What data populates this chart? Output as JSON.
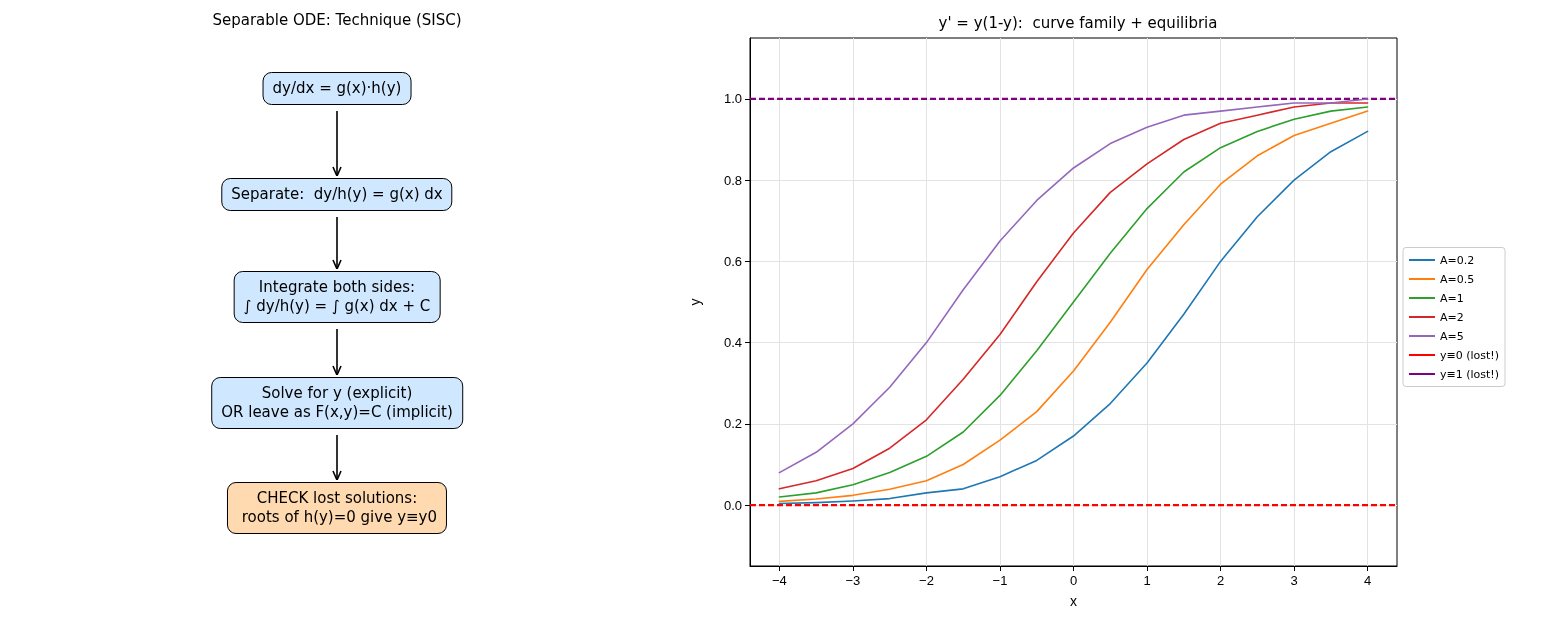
{
  "chart_data": [
    {
      "type": "other",
      "title": "Separable ODE: Technique (SISC)",
      "annotations": [
        "dy/dx = g(x)·h(y)",
        "Separate:  dy/h(y) = g(x) dx",
        "Integrate both sides:\n∫ dy/h(y) = ∫ g(x) dx + C",
        "Solve for y (explicit)\nOR leave as F(x,y)=C (implicit)",
        "CHECK lost solutions:\n roots of h(y)=0 give y≡y0"
      ],
      "colors": [
        "#cfe8ff",
        "#cfe8ff",
        "#cfe8ff",
        "#cfe8ff",
        "#ffdab0"
      ]
    },
    {
      "type": "line",
      "title": "y' = y(1-y):  curve family + equilibria",
      "xlabel": "x",
      "ylabel": "y",
      "x": [
        -4,
        -3.5,
        -3,
        -2.5,
        -2,
        -1.5,
        -1,
        -0.5,
        0,
        0.5,
        1,
        1.5,
        2,
        2.5,
        3,
        3.5,
        4
      ],
      "series": [
        {
          "name": "A=0.2",
          "color": "#1f77b4",
          "values": [
            0.004,
            0.006,
            0.01,
            0.016,
            0.03,
            0.04,
            0.07,
            0.11,
            0.17,
            0.25,
            0.35,
            0.47,
            0.6,
            0.71,
            0.8,
            0.87,
            0.92
          ]
        },
        {
          "name": "A=0.5",
          "color": "#ff7f0e",
          "values": [
            0.009,
            0.015,
            0.024,
            0.039,
            0.06,
            0.1,
            0.16,
            0.23,
            0.33,
            0.45,
            0.58,
            0.69,
            0.79,
            0.86,
            0.91,
            0.94,
            0.97
          ]
        },
        {
          "name": "A=1",
          "color": "#2ca02c",
          "values": [
            0.02,
            0.03,
            0.05,
            0.08,
            0.12,
            0.18,
            0.27,
            0.38,
            0.5,
            0.62,
            0.73,
            0.82,
            0.88,
            0.92,
            0.95,
            0.97,
            0.98
          ]
        },
        {
          "name": "A=2",
          "color": "#d62728",
          "values": [
            0.04,
            0.06,
            0.09,
            0.14,
            0.21,
            0.31,
            0.42,
            0.55,
            0.67,
            0.77,
            0.84,
            0.9,
            0.94,
            0.96,
            0.98,
            0.99,
            0.99
          ]
        },
        {
          "name": "A=5",
          "color": "#9467bd",
          "values": [
            0.08,
            0.13,
            0.2,
            0.29,
            0.4,
            0.53,
            0.65,
            0.75,
            0.83,
            0.89,
            0.93,
            0.96,
            0.97,
            0.98,
            0.99,
            0.99,
            1.0
          ]
        }
      ],
      "ref_lines": [
        {
          "axis": "y",
          "value": 0,
          "label": "y≡0 (lost!)",
          "color": "#ff0000",
          "line_style": "dashed"
        },
        {
          "axis": "y",
          "value": 1,
          "label": "y≡1 (lost!)",
          "color": "#800080",
          "line_style": "dashed"
        }
      ],
      "xlim": [
        -4.4,
        4.4
      ],
      "ylim": [
        -0.15,
        1.15
      ],
      "xticks": [
        -4,
        -3,
        -2,
        -1,
        0,
        1,
        2,
        3,
        4
      ],
      "yticks": [
        {
          "value": 0,
          "label": "0.0"
        },
        0.2,
        0.4,
        0.6,
        0.8,
        {
          "value": 1,
          "label": "1.0"
        }
      ],
      "grid": true,
      "legend": "right",
      "marker": "none",
      "line_style": "solid"
    }
  ]
}
